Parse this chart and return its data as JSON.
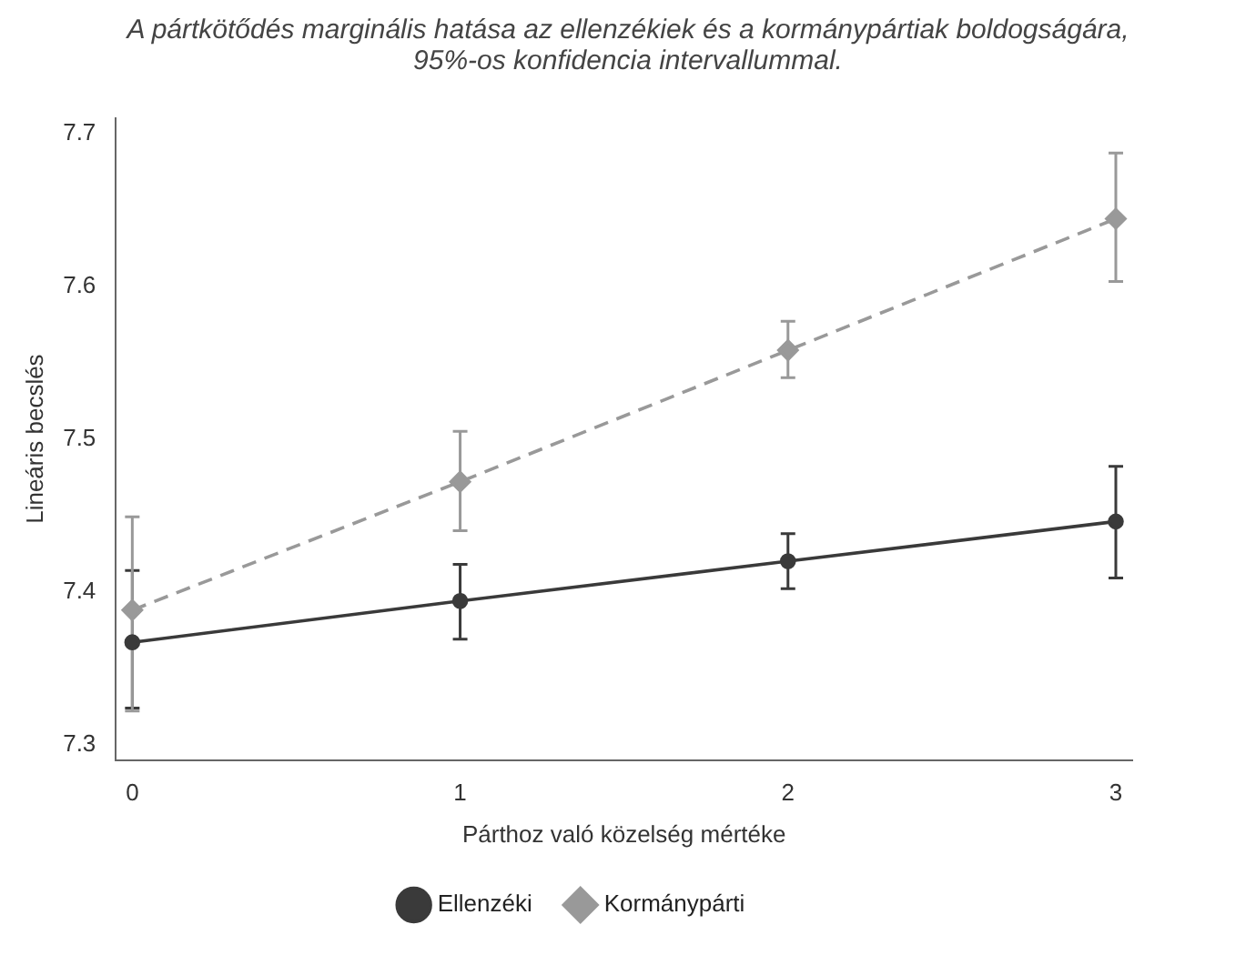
{
  "chart_data": {
    "type": "line",
    "title": "A pártkötődés marginális hatása az ellenzékiek és a kormánypártiak boldogságára,\n95%-os konfidencia intervallummal.",
    "xlabel": "Párthoz való közelség mértéke",
    "ylabel": "Lineáris becslés",
    "x": [
      0,
      1,
      2,
      3
    ],
    "xlim": [
      -0.05,
      3.05
    ],
    "xticks": [
      0,
      1,
      2,
      3
    ],
    "ylim": [
      7.29,
      7.71
    ],
    "yticks": [
      7.3,
      7.4,
      7.5,
      7.6,
      7.7
    ],
    "grid": false,
    "legend": "bottom",
    "series": [
      {
        "name": "Ellenzéki",
        "color": "#3a3a3a",
        "values": [
          7.367,
          7.394,
          7.42,
          7.446
        ],
        "errors": [
          [
            7.324,
            7.414
          ],
          [
            7.369,
            7.418
          ],
          [
            7.402,
            7.438
          ],
          [
            7.409,
            7.482
          ]
        ],
        "marker": "circle",
        "line_style": "solid"
      },
      {
        "name": "Kormánypárti",
        "color": "#999999",
        "values": [
          7.388,
          7.472,
          7.558,
          7.644
        ],
        "errors": [
          [
            7.322,
            7.449
          ],
          [
            7.44,
            7.505
          ],
          [
            7.54,
            7.577
          ],
          [
            7.603,
            7.687
          ]
        ],
        "marker": "diamond",
        "line_style": "dashed"
      }
    ]
  }
}
